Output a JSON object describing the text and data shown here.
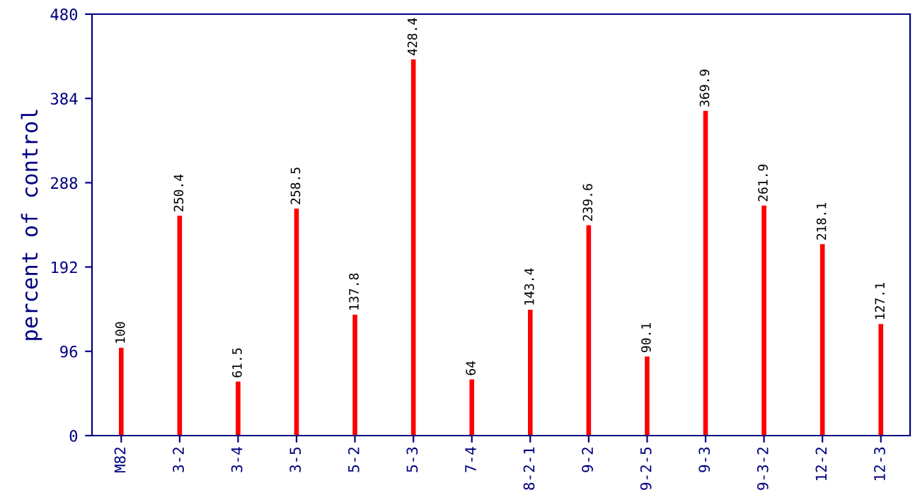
{
  "chart_data": {
    "type": "bar",
    "ylabel": "percent of control",
    "categories": [
      "M82",
      "3-2",
      "3-4",
      "3-5",
      "5-2",
      "5-3",
      "7-4",
      "8-2-1",
      "9-2",
      "9-2-5",
      "9-3",
      "9-3-2",
      "12-2",
      "12-3"
    ],
    "values": [
      100,
      250.4,
      61.5,
      258.5,
      137.8,
      428.4,
      64,
      143.4,
      239.6,
      90.1,
      369.9,
      261.9,
      218.1,
      127.1
    ],
    "color": "#ff0000",
    "ylim": [
      0,
      480
    ],
    "yticks": [
      0,
      96,
      192,
      288,
      384,
      480
    ],
    "data_labels": true,
    "grid": false,
    "legend": false
  }
}
